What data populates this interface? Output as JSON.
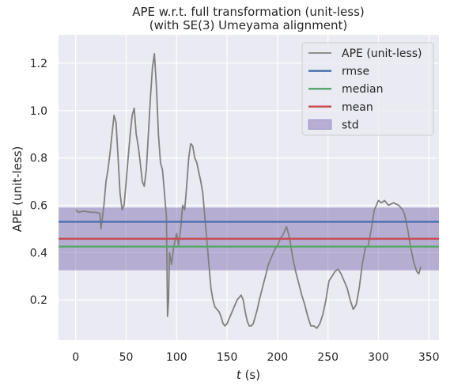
{
  "chart_data": {
    "type": "line",
    "title": "APE w.r.t. full transformation (unit-less)",
    "subtitle": "(with SE(3) Umeyama alignment)",
    "xlabel_italic": "t",
    "xlabel_unit": " (s)",
    "ylabel": "APE (unit-less)",
    "xlim": [
      -17,
      360
    ],
    "ylim": [
      0.03,
      1.32
    ],
    "xticks": [
      0,
      50,
      100,
      150,
      200,
      250,
      300,
      350
    ],
    "yticks": [
      0.2,
      0.4,
      0.6,
      0.8,
      1.0,
      1.2
    ],
    "ytick_labels": [
      "0.2",
      "0.4",
      "0.6",
      "0.8",
      "1.0",
      "1.2"
    ],
    "grid": true,
    "legend_position": "top-right",
    "legend": [
      "APE (unit-less)",
      "rmse",
      "median",
      "mean",
      "std"
    ],
    "series": [
      {
        "name": "APE (unit-less)",
        "color": "#808080",
        "x": [
          0,
          3,
          8,
          15,
          20,
          24,
          25,
          26,
          28,
          30,
          32,
          34,
          36,
          38,
          40,
          42,
          44,
          46,
          48,
          50,
          52,
          54,
          56,
          58,
          60,
          62,
          64,
          66,
          68,
          70,
          72,
          74,
          76,
          78,
          80,
          82,
          84,
          86,
          88,
          89,
          90,
          91,
          92,
          93,
          95,
          97,
          100,
          102,
          104,
          106,
          108,
          110,
          112,
          114,
          116,
          118,
          120,
          122,
          124,
          126,
          128,
          130,
          132,
          134,
          136,
          138,
          140,
          142,
          144,
          146,
          148,
          150,
          152,
          154,
          156,
          158,
          160,
          162,
          164,
          166,
          168,
          170,
          172,
          174,
          176,
          178,
          180,
          182,
          185,
          188,
          191,
          194,
          197,
          200,
          203,
          206,
          209,
          212,
          215,
          218,
          221,
          224,
          227,
          230,
          233,
          236,
          239,
          242,
          245,
          248,
          251,
          254,
          257,
          260,
          263,
          266,
          269,
          272,
          275,
          278,
          281,
          284,
          287,
          290,
          293,
          296,
          298,
          300,
          303,
          306,
          310,
          315,
          320,
          324,
          326,
          329,
          332,
          335,
          338,
          340,
          342
        ],
        "y": [
          0.58,
          0.57,
          0.575,
          0.57,
          0.57,
          0.565,
          0.5,
          0.53,
          0.6,
          0.7,
          0.75,
          0.82,
          0.9,
          0.98,
          0.95,
          0.8,
          0.65,
          0.58,
          0.6,
          0.7,
          0.8,
          0.9,
          0.98,
          1.01,
          0.9,
          0.85,
          0.78,
          0.7,
          0.68,
          0.75,
          0.9,
          1.05,
          1.18,
          1.24,
          1.1,
          0.9,
          0.78,
          0.75,
          0.65,
          0.6,
          0.55,
          0.13,
          0.2,
          0.4,
          0.35,
          0.42,
          0.48,
          0.43,
          0.5,
          0.6,
          0.58,
          0.68,
          0.8,
          0.86,
          0.85,
          0.8,
          0.78,
          0.74,
          0.7,
          0.65,
          0.55,
          0.45,
          0.35,
          0.25,
          0.2,
          0.17,
          0.16,
          0.15,
          0.13,
          0.1,
          0.09,
          0.1,
          0.12,
          0.14,
          0.16,
          0.18,
          0.2,
          0.21,
          0.22,
          0.2,
          0.15,
          0.11,
          0.09,
          0.09,
          0.1,
          0.13,
          0.16,
          0.2,
          0.25,
          0.3,
          0.35,
          0.38,
          0.41,
          0.43,
          0.46,
          0.48,
          0.51,
          0.46,
          0.38,
          0.32,
          0.27,
          0.22,
          0.18,
          0.13,
          0.09,
          0.09,
          0.08,
          0.1,
          0.14,
          0.2,
          0.28,
          0.3,
          0.32,
          0.33,
          0.31,
          0.28,
          0.25,
          0.2,
          0.16,
          0.18,
          0.25,
          0.35,
          0.42,
          0.43,
          0.5,
          0.58,
          0.6,
          0.62,
          0.61,
          0.62,
          0.6,
          0.61,
          0.6,
          0.58,
          0.56,
          0.5,
          0.42,
          0.36,
          0.32,
          0.31,
          0.34
        ]
      },
      {
        "name": "rmse",
        "color": "#4c72b0",
        "value": 0.53
      },
      {
        "name": "median",
        "color": "#55a868",
        "value": 0.425
      },
      {
        "name": "mean",
        "color": "#c44e52",
        "value": 0.458
      },
      {
        "name": "std",
        "color": "#8172b2",
        "range": [
          0.325,
          0.59
        ]
      }
    ]
  }
}
